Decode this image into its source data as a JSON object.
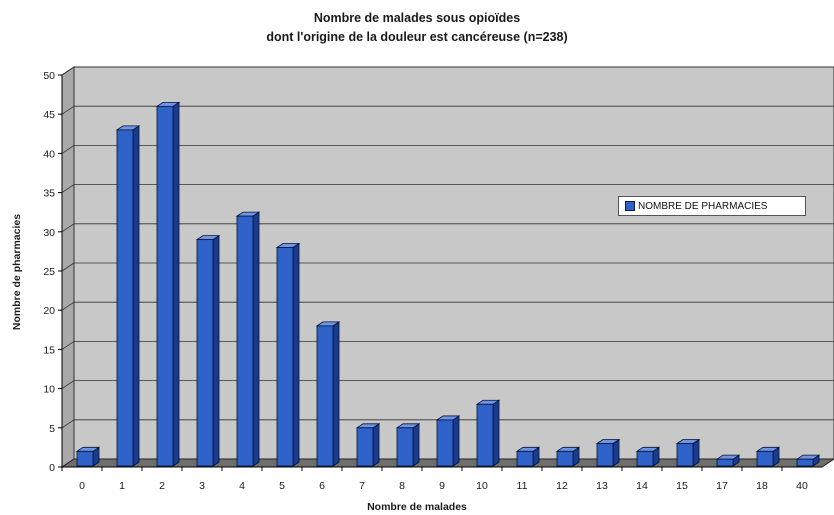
{
  "chart_data": {
    "type": "bar",
    "title": "Nombre de malades sous opioïdes",
    "subtitle": "dont l'origine de la douleur est cancéreuse (n=238)",
    "xlabel": "Nombre de malades",
    "ylabel": "Nombre de pharmacies",
    "categories": [
      "0",
      "1",
      "2",
      "3",
      "4",
      "5",
      "6",
      "7",
      "8",
      "9",
      "10",
      "11",
      "12",
      "13",
      "14",
      "15",
      "17",
      "18",
      "40"
    ],
    "series": [
      {
        "name": "NOMBRE DE PHARMACIES",
        "values": [
          2,
          43,
          46,
          29,
          32,
          28,
          18,
          5,
          5,
          6,
          8,
          2,
          2,
          3,
          2,
          3,
          1,
          2,
          1
        ]
      }
    ],
    "ylim": [
      0,
      50
    ],
    "yticks": [
      0,
      5,
      10,
      15,
      20,
      25,
      30,
      35,
      40,
      45,
      50
    ],
    "grid": true,
    "legend_position": "right",
    "colors": {
      "bar_front": "#2f62c9",
      "bar_top": "#6f95e6",
      "bar_side": "#1a3a8c",
      "plot_background": "#c8c8c8",
      "floor": "#6e6e6e"
    }
  }
}
